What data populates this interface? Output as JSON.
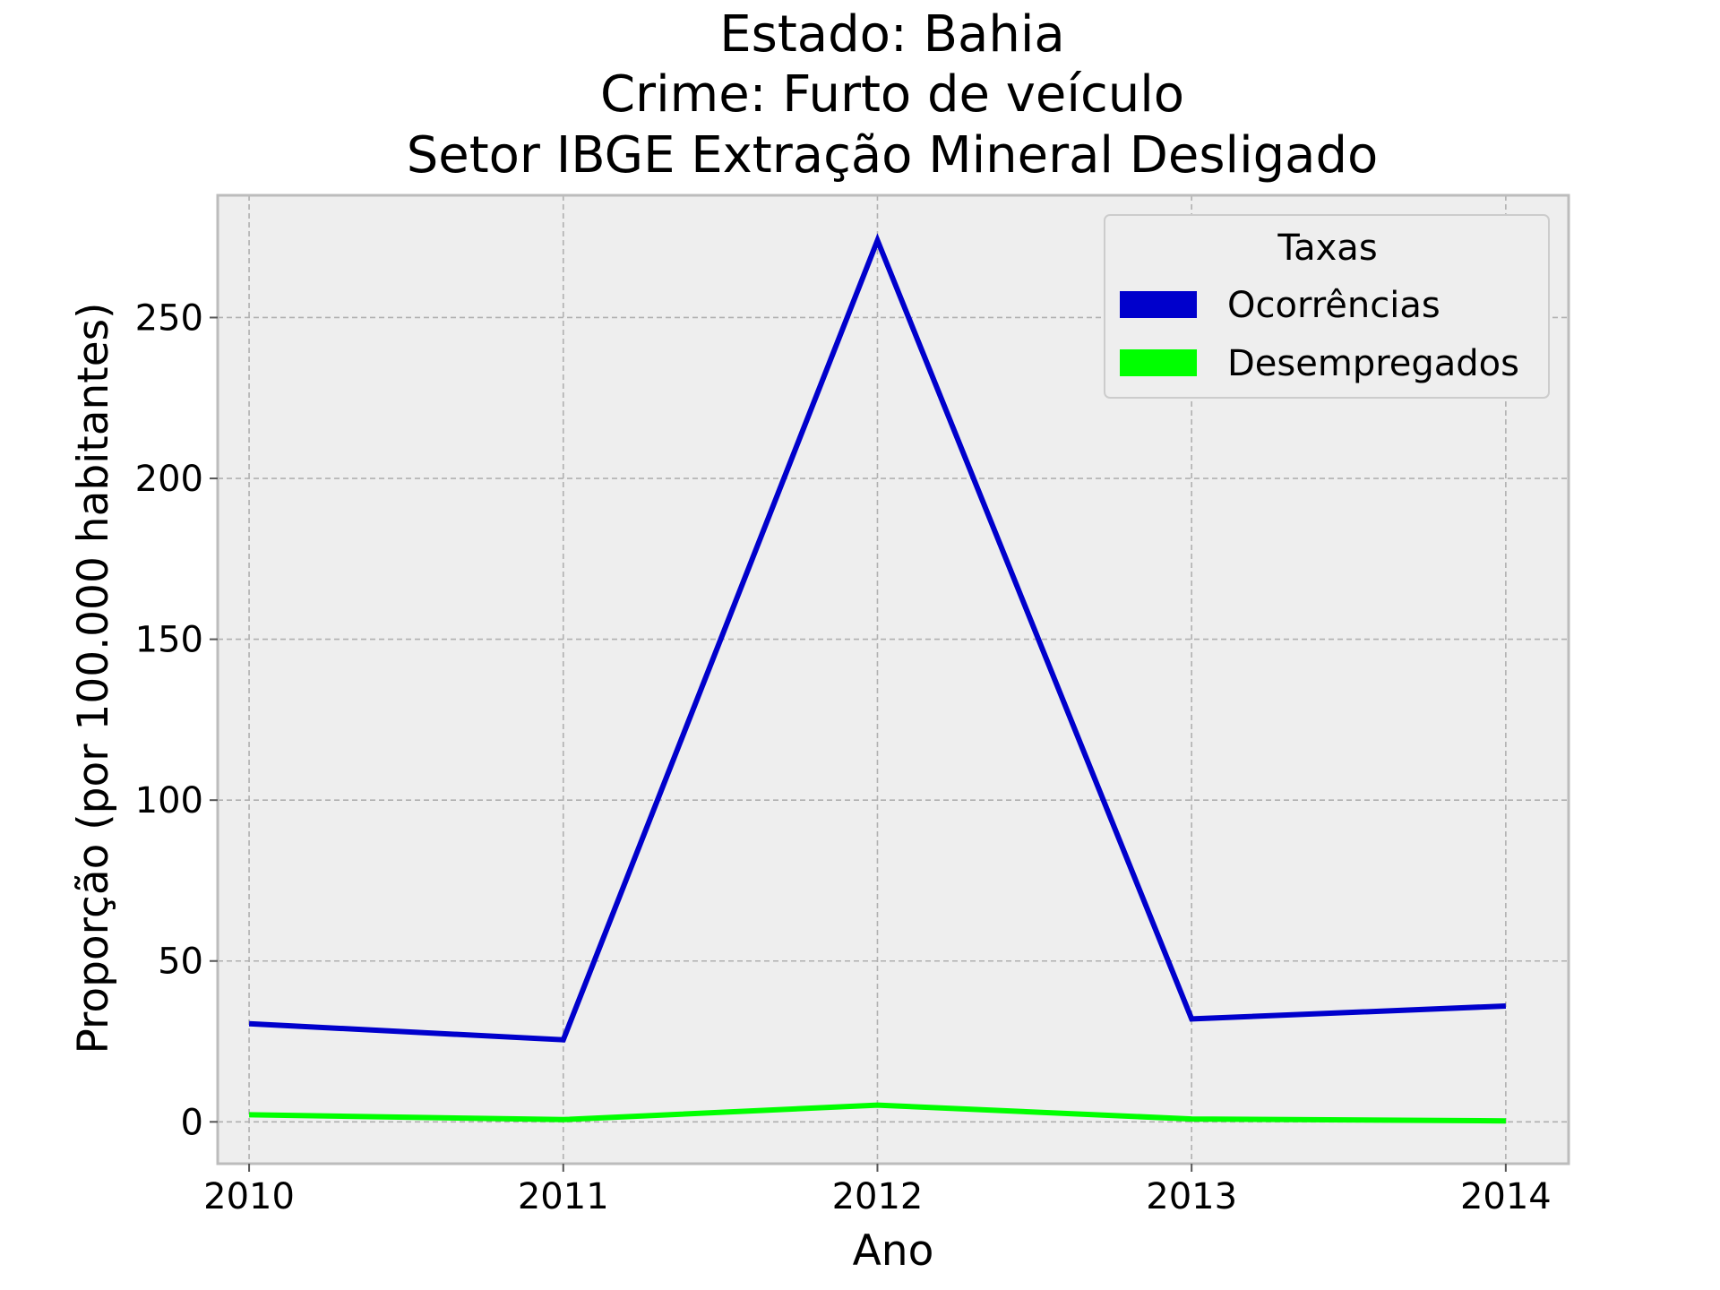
{
  "chart_data": {
    "type": "line",
    "title_lines": [
      "Estado: Bahia",
      "Crime: Furto de veículo",
      "Setor IBGE  Extração Mineral   Desligado"
    ],
    "xlabel": "Ano",
    "ylabel": "Proporção (por 100.000 habitantes)",
    "x": [
      2010,
      2011,
      2012,
      2013,
      2014
    ],
    "x_tick_labels": [
      "2010",
      "2011",
      "2012",
      "2013",
      "2014"
    ],
    "y_ticks": [
      0,
      50,
      100,
      150,
      200,
      250
    ],
    "y_tick_labels": [
      "0",
      "50",
      "100",
      "150",
      "200",
      "250"
    ],
    "xlim": [
      2009.9,
      2014.2
    ],
    "ylim": [
      -13,
      288
    ],
    "grid": true,
    "legend": {
      "title": "Taxas",
      "position": "top-right"
    },
    "series": [
      {
        "name": "Ocorrências",
        "color": "#0000cc",
        "values": [
          30.5,
          25.5,
          274,
          32,
          36
        ]
      },
      {
        "name": "Desempregados",
        "color": "#00ff00",
        "values": [
          2.2,
          0.7,
          5.2,
          0.9,
          0.3
        ]
      }
    ],
    "background_color": "#eeeeee",
    "grid_color": "#b0b0b0",
    "frame_color": "#bcbcbc"
  }
}
